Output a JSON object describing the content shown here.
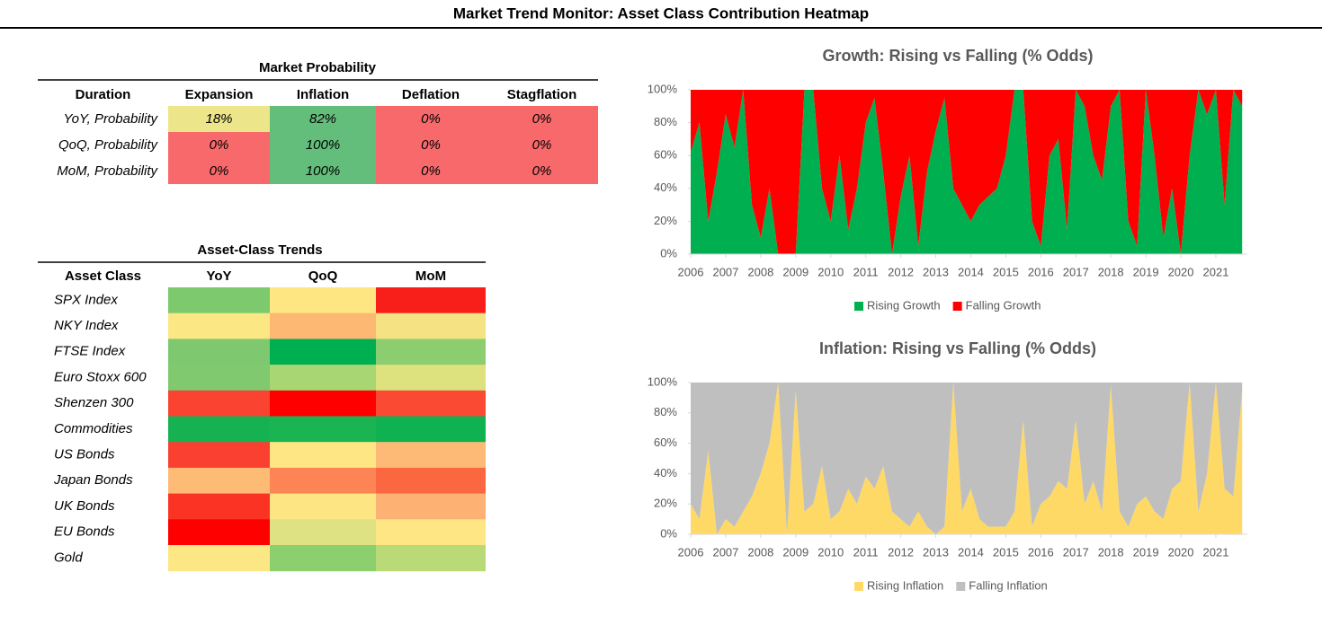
{
  "title": "Market Trend Monitor: Asset Class Contribution Heatmap",
  "probability_table": {
    "title": "Market Probability",
    "headers": [
      "Duration",
      "Expansion",
      "Inflation",
      "Deflation",
      "Stagflation"
    ],
    "rows": [
      {
        "label": "YoY, Probability",
        "cells": [
          "18%",
          "82%",
          "0%",
          "0%"
        ],
        "colors": [
          "#ede58a",
          "#63be7b",
          "#f8696b",
          "#f8696b"
        ]
      },
      {
        "label": "QoQ, Probability",
        "cells": [
          "0%",
          "100%",
          "0%",
          "0%"
        ],
        "colors": [
          "#f8696b",
          "#63be7b",
          "#f8696b",
          "#f8696b"
        ]
      },
      {
        "label": "MoM, Probability",
        "cells": [
          "0%",
          "100%",
          "0%",
          "0%"
        ],
        "colors": [
          "#f8696b",
          "#63be7b",
          "#f8696b",
          "#f8696b"
        ]
      }
    ]
  },
  "trends_table": {
    "title": "Asset-Class Trends",
    "headers": [
      "Asset Class",
      "YoY",
      "QoQ",
      "MoM"
    ],
    "rows": [
      {
        "label": "SPX Index",
        "colors": [
          "#7cc96e",
          "#fee682",
          "#f81f1a"
        ]
      },
      {
        "label": "NKY Index",
        "colors": [
          "#fbe783",
          "#fdb874",
          "#f5e383"
        ]
      },
      {
        "label": "FTSE Index",
        "colors": [
          "#7ec96f",
          "#00b050",
          "#8ccd70"
        ]
      },
      {
        "label": "Euro Stoxx 600",
        "colors": [
          "#80c96f",
          "#a8d673",
          "#dde17e"
        ]
      },
      {
        "label": "Shenzen 300",
        "colors": [
          "#fa4331",
          "#fe0000",
          "#fa4a33"
        ]
      },
      {
        "label": "Commodities",
        "colors": [
          "#16b252",
          "#1ab452",
          "#0fb151"
        ]
      },
      {
        "label": "US Bonds",
        "colors": [
          "#fa4131",
          "#ffe684",
          "#fdba76"
        ]
      },
      {
        "label": "Japan Bonds",
        "colors": [
          "#fdbb76",
          "#fd8455",
          "#fa6740"
        ]
      },
      {
        "label": "UK Bonds",
        "colors": [
          "#fa3325",
          "#fee583",
          "#fdb273"
        ]
      },
      {
        "label": "EU Bonds",
        "colors": [
          "#fe0000",
          "#dfe283",
          "#fee684"
        ]
      },
      {
        "label": "Gold",
        "colors": [
          "#fde784",
          "#8bcf6f",
          "#bada78"
        ]
      }
    ]
  },
  "chart_data": [
    {
      "type": "stacked-area",
      "title": "Growth: Rising vs Falling (% Odds)",
      "x": [
        2006,
        2006.25,
        2006.5,
        2006.75,
        2007,
        2007.25,
        2007.5,
        2007.75,
        2008,
        2008.25,
        2008.5,
        2008.75,
        2009,
        2009.25,
        2009.5,
        2009.75,
        2010,
        2010.25,
        2010.5,
        2010.75,
        2011,
        2011.25,
        2011.5,
        2011.75,
        2012,
        2012.25,
        2012.5,
        2012.75,
        2013,
        2013.25,
        2013.5,
        2013.75,
        2014,
        2014.25,
        2014.5,
        2014.75,
        2015,
        2015.25,
        2015.5,
        2015.75,
        2016,
        2016.25,
        2016.5,
        2016.75,
        2017,
        2017.25,
        2017.5,
        2017.75,
        2018,
        2018.25,
        2018.5,
        2018.75,
        2019,
        2019.25,
        2019.5,
        2019.75,
        2020,
        2020.25,
        2020.5,
        2020.75,
        2021,
        2021.25,
        2021.5,
        2021.75
      ],
      "xlim": [
        2006,
        2021.9
      ],
      "xticks": [
        2006,
        2007,
        2008,
        2009,
        2010,
        2011,
        2012,
        2013,
        2014,
        2015,
        2016,
        2017,
        2018,
        2019,
        2020,
        2021
      ],
      "ylim": [
        0,
        100
      ],
      "yticks": [
        {
          "value": 0,
          "label": "0%"
        },
        {
          "value": 20,
          "label": "20%"
        },
        {
          "value": 40,
          "label": "40%"
        },
        {
          "value": 60,
          "label": "60%"
        },
        {
          "value": 80,
          "label": "80%"
        },
        {
          "value": 100,
          "label": "100%"
        }
      ],
      "series": [
        {
          "name": "Rising Growth",
          "color": "#00b050",
          "values": [
            62,
            80,
            20,
            50,
            85,
            65,
            100,
            30,
            10,
            40,
            0,
            0,
            0,
            100,
            100,
            40,
            20,
            60,
            15,
            40,
            80,
            95,
            50,
            0,
            35,
            60,
            5,
            50,
            75,
            95,
            40,
            30,
            20,
            30,
            35,
            40,
            60,
            100,
            100,
            20,
            5,
            60,
            70,
            15,
            100,
            90,
            60,
            45,
            90,
            100,
            20,
            5,
            100,
            60,
            10,
            40,
            0,
            60,
            100,
            85,
            100,
            30,
            100,
            90
          ]
        },
        {
          "name": "Falling Growth",
          "color": "#ff0000",
          "values": [
            38,
            20,
            80,
            50,
            15,
            35,
            0,
            70,
            90,
            60,
            100,
            100,
            100,
            0,
            0,
            60,
            80,
            40,
            85,
            60,
            20,
            5,
            50,
            100,
            65,
            40,
            95,
            50,
            25,
            5,
            60,
            70,
            80,
            70,
            65,
            60,
            40,
            0,
            0,
            80,
            95,
            40,
            30,
            85,
            0,
            10,
            40,
            55,
            10,
            0,
            80,
            95,
            0,
            40,
            90,
            60,
            100,
            40,
            0,
            15,
            0,
            70,
            0,
            10
          ]
        }
      ]
    },
    {
      "type": "stacked-area",
      "title": "Inflation: Rising vs Falling  (% Odds)",
      "x": [
        2006,
        2006.25,
        2006.5,
        2006.75,
        2007,
        2007.25,
        2007.5,
        2007.75,
        2008,
        2008.25,
        2008.5,
        2008.75,
        2009,
        2009.25,
        2009.5,
        2009.75,
        2010,
        2010.25,
        2010.5,
        2010.75,
        2011,
        2011.25,
        2011.5,
        2011.75,
        2012,
        2012.25,
        2012.5,
        2012.75,
        2013,
        2013.25,
        2013.5,
        2013.75,
        2014,
        2014.25,
        2014.5,
        2014.75,
        2015,
        2015.25,
        2015.5,
        2015.75,
        2016,
        2016.25,
        2016.5,
        2016.75,
        2017,
        2017.25,
        2017.5,
        2017.75,
        2018,
        2018.25,
        2018.5,
        2018.75,
        2019,
        2019.25,
        2019.5,
        2019.75,
        2020,
        2020.25,
        2020.5,
        2020.75,
        2021,
        2021.25,
        2021.5,
        2021.75
      ],
      "xlim": [
        2006,
        2021.9
      ],
      "xticks": [
        2006,
        2007,
        2008,
        2009,
        2010,
        2011,
        2012,
        2013,
        2014,
        2015,
        2016,
        2017,
        2018,
        2019,
        2020,
        2021
      ],
      "ylim": [
        0,
        100
      ],
      "yticks": [
        {
          "value": 0,
          "label": "0%"
        },
        {
          "value": 20,
          "label": "20%"
        },
        {
          "value": 40,
          "label": "40%"
        },
        {
          "value": 60,
          "label": "60%"
        },
        {
          "value": 80,
          "label": "80%"
        },
        {
          "value": 100,
          "label": "100%"
        }
      ],
      "series": [
        {
          "name": "Rising Inflation",
          "color": "#ffd966",
          "values": [
            20,
            10,
            55,
            0,
            10,
            5,
            15,
            25,
            40,
            60,
            100,
            0,
            95,
            15,
            20,
            45,
            10,
            15,
            30,
            20,
            38,
            30,
            45,
            15,
            10,
            5,
            15,
            5,
            0,
            5,
            100,
            15,
            30,
            10,
            5,
            5,
            5,
            15,
            75,
            5,
            20,
            25,
            35,
            30,
            75,
            20,
            35,
            15,
            98,
            15,
            5,
            20,
            25,
            15,
            10,
            30,
            35,
            100,
            15,
            40,
            100,
            30,
            25,
            95
          ]
        },
        {
          "name": "Falling Inflation",
          "color": "#bfbfbf",
          "values": [
            80,
            90,
            45,
            100,
            90,
            95,
            85,
            75,
            60,
            40,
            0,
            100,
            5,
            85,
            80,
            55,
            90,
            85,
            70,
            80,
            62,
            70,
            55,
            85,
            90,
            95,
            85,
            95,
            100,
            95,
            0,
            85,
            70,
            90,
            95,
            95,
            95,
            85,
            25,
            95,
            80,
            75,
            65,
            70,
            25,
            80,
            65,
            85,
            2,
            85,
            95,
            80,
            75,
            85,
            90,
            70,
            65,
            0,
            85,
            60,
            0,
            70,
            75,
            5
          ]
        }
      ]
    }
  ]
}
